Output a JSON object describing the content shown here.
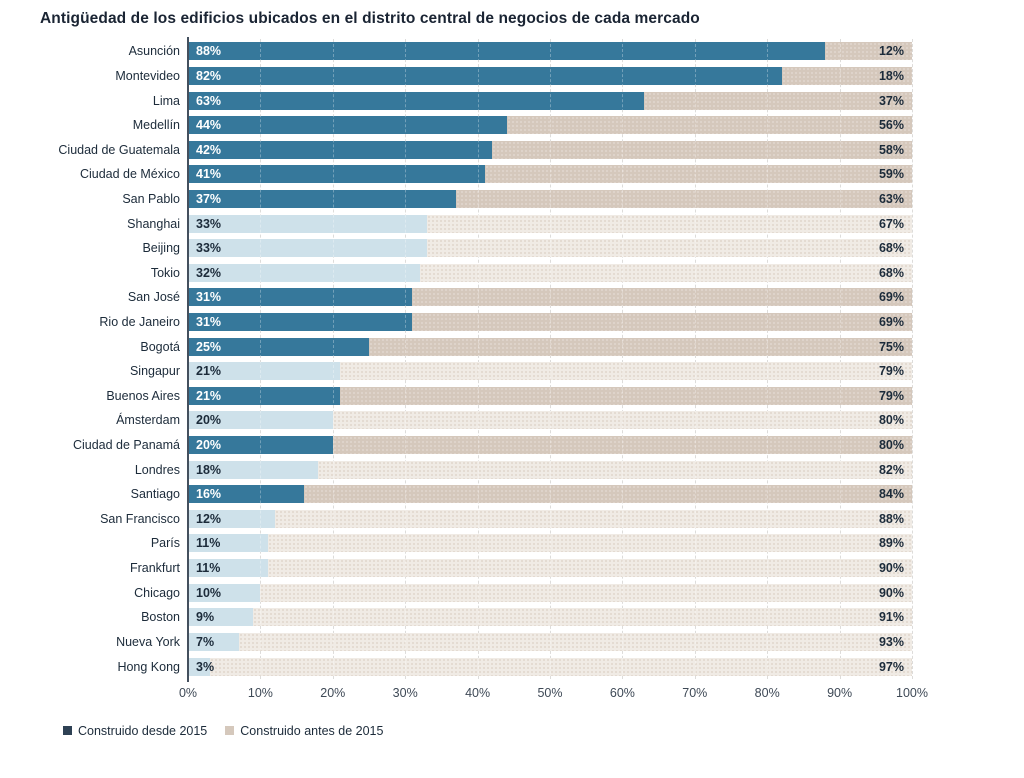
{
  "chart_data": {
    "type": "bar",
    "variant": "horizontal-stacked-100pct",
    "title": "Antigüedad de los edificios ubicados en el distrito central de negocios de cada mercado",
    "categories": [
      "Asunción",
      "Montevideo",
      "Lima",
      "Medellín",
      "Ciudad de Guatemala",
      "Ciudad de México",
      "San Pablo",
      "Shanghai",
      "Beijing",
      "Tokio",
      "San José",
      "Rio de Janeiro",
      "Bogotá",
      "Singapur",
      "Buenos Aires",
      "Ámsterdam",
      "Ciudad de Panamá",
      "Londres",
      "Santiago",
      "San Francisco",
      "París",
      "Frankfurt",
      "Chicago",
      "Boston",
      "Nueva York",
      "Hong Kong"
    ],
    "series": [
      {
        "name": "Construido desde 2015",
        "values": [
          88,
          82,
          63,
          44,
          42,
          41,
          37,
          33,
          33,
          32,
          31,
          31,
          25,
          21,
          21,
          20,
          20,
          18,
          16,
          12,
          11,
          11,
          10,
          9,
          7,
          3
        ]
      },
      {
        "name": "Construido antes de 2015",
        "values": [
          12,
          18,
          37,
          56,
          58,
          59,
          63,
          67,
          68,
          68,
          69,
          69,
          75,
          79,
          79,
          80,
          80,
          82,
          84,
          88,
          89,
          90,
          90,
          91,
          93,
          97
        ]
      }
    ],
    "highlighted": [
      true,
      true,
      true,
      true,
      true,
      true,
      true,
      false,
      false,
      false,
      true,
      true,
      true,
      false,
      true,
      false,
      true,
      false,
      true,
      false,
      false,
      false,
      false,
      false,
      false,
      false
    ],
    "x_ticks": [
      "0%",
      "10%",
      "20%",
      "30%",
      "40%",
      "50%",
      "60%",
      "70%",
      "80%",
      "90%",
      "100%"
    ],
    "xlim": [
      0,
      100
    ],
    "grid": "vertical-dashed",
    "legend_position": "bottom-left",
    "colors": {
      "desde_2015_highlight": "#36789b",
      "desde_2015_muted": "#cee1ea",
      "antes_2015_highlight": "#d5c8bc",
      "antes_2015_muted": "#f0ebe5",
      "legend_desde_swatch": "#2e4154",
      "legend_antes_swatch": "#d5c8bc",
      "title_text": "#1a2433",
      "axis_line": "#44505e"
    }
  }
}
